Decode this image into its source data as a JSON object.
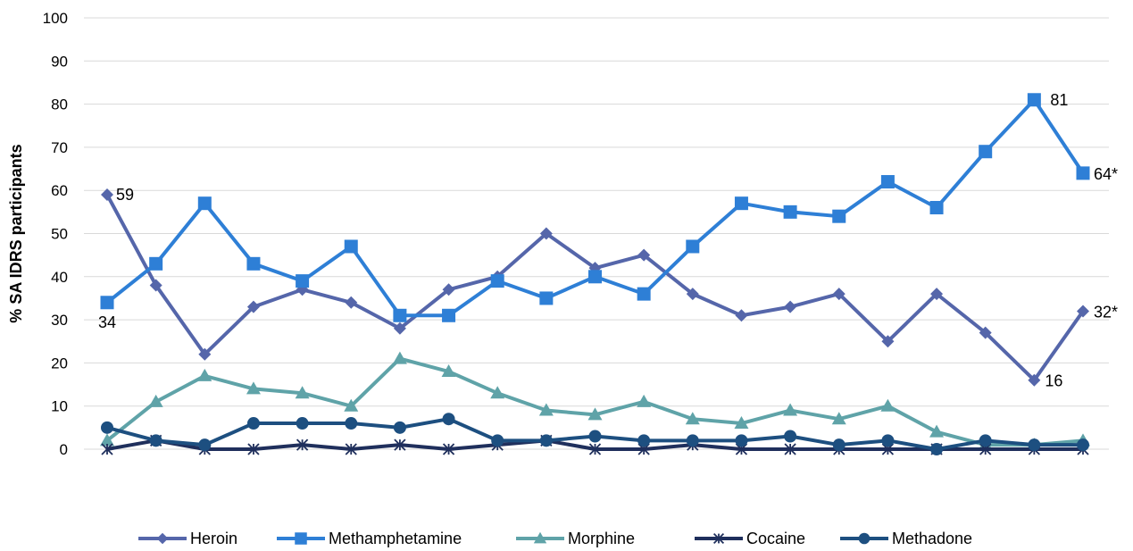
{
  "chart_data": {
    "type": "line",
    "title": "",
    "xlabel": "",
    "ylabel": "% SA IDRS participants",
    "ylim": [
      0,
      100
    ],
    "yticks": [
      0,
      10,
      20,
      30,
      40,
      50,
      60,
      70,
      80,
      90,
      100
    ],
    "grid": true,
    "legend_position": "bottom",
    "series": [
      {
        "name": "Heroin",
        "color": "#5566aa",
        "marker": "diamond",
        "values": [
          59,
          38,
          22,
          33,
          37,
          34,
          28,
          37,
          40,
          50,
          42,
          45,
          36,
          31,
          33,
          36,
          25,
          36,
          27,
          16,
          32
        ]
      },
      {
        "name": "Methamphetamine",
        "color": "#2e7fd6",
        "marker": "square",
        "values": [
          34,
          43,
          57,
          43,
          39,
          47,
          31,
          31,
          39,
          35,
          40,
          36,
          47,
          57,
          55,
          54,
          62,
          56,
          69,
          81,
          64
        ]
      },
      {
        "name": "Morphine",
        "color": "#5fa3a8",
        "marker": "triangle",
        "values": [
          2,
          11,
          17,
          14,
          13,
          10,
          21,
          18,
          13,
          9,
          8,
          11,
          7,
          6,
          9,
          7,
          10,
          4,
          1,
          1,
          2
        ]
      },
      {
        "name": "Cocaine",
        "color": "#1f2f5c",
        "marker": "star",
        "values": [
          0,
          2,
          0,
          0,
          1,
          0,
          1,
          0,
          1,
          2,
          0,
          0,
          1,
          0,
          0,
          0,
          0,
          0,
          0,
          0,
          0
        ]
      },
      {
        "name": "Methadone",
        "color": "#1d4f80",
        "marker": "circle",
        "values": [
          5,
          2,
          1,
          6,
          6,
          6,
          5,
          7,
          2,
          2,
          3,
          2,
          2,
          2,
          3,
          1,
          2,
          0,
          2,
          1,
          1
        ]
      }
    ],
    "annotations": [
      {
        "series": 0,
        "index": 0,
        "text": "59"
      },
      {
        "series": 1,
        "index": 0,
        "text": "34"
      },
      {
        "series": 1,
        "index": 19,
        "text": "81"
      },
      {
        "series": 1,
        "index": 20,
        "text": "64*"
      },
      {
        "series": 0,
        "index": 20,
        "text": "32*"
      },
      {
        "series": 0,
        "index": 19,
        "text": "16"
      }
    ]
  }
}
